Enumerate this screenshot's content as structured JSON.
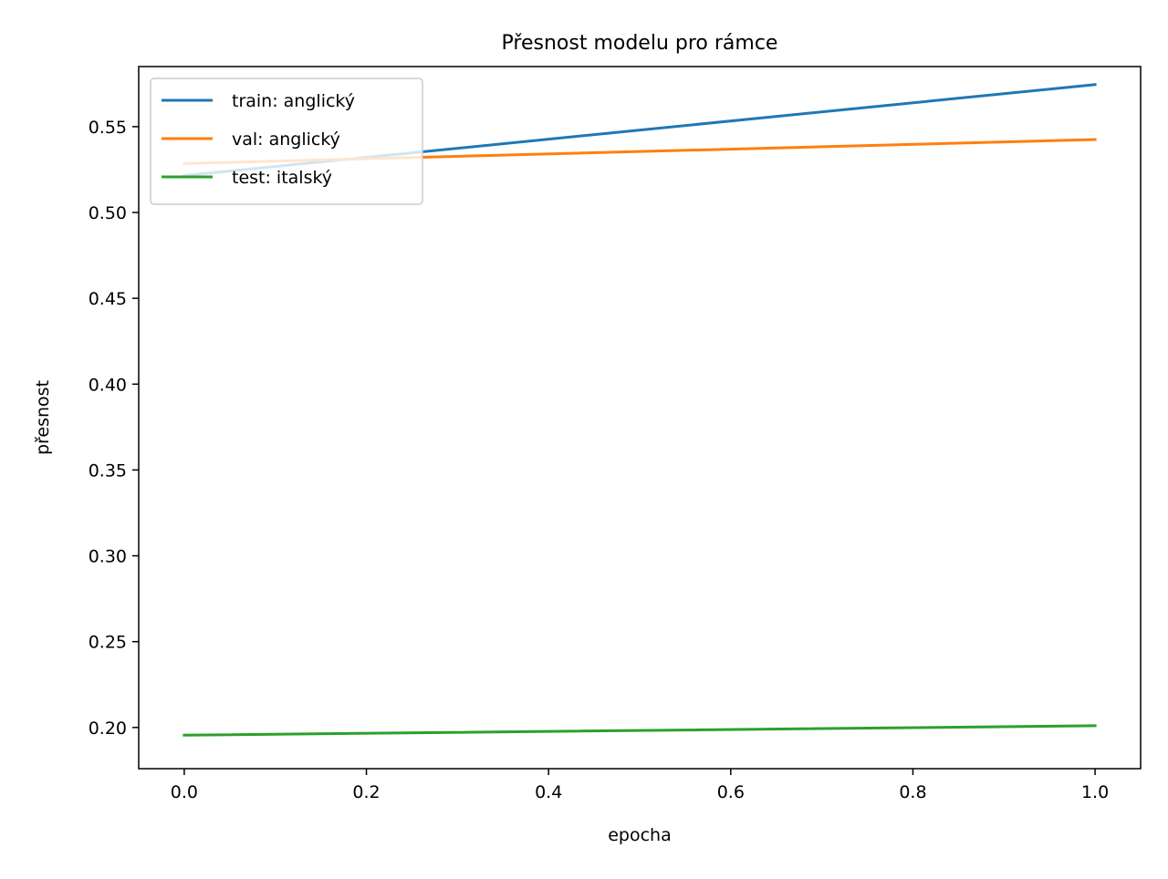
{
  "chart_data": {
    "type": "line",
    "title": "Přesnost modelu pro rámce",
    "xlabel": "epocha",
    "ylabel": "přesnost",
    "x": [
      0,
      1
    ],
    "xlim": [
      -0.05,
      1.05
    ],
    "ylim": [
      0.176,
      0.585
    ],
    "xticks": [
      0.0,
      0.2,
      0.4,
      0.6,
      0.8,
      1.0
    ],
    "xtick_labels": [
      "0.0",
      "0.2",
      "0.4",
      "0.6",
      "0.8",
      "1.0"
    ],
    "yticks": [
      0.2,
      0.25,
      0.3,
      0.35,
      0.4,
      0.45,
      0.5,
      0.55
    ],
    "ytick_labels": [
      "0.20",
      "0.25",
      "0.30",
      "0.35",
      "0.40",
      "0.45",
      "0.50",
      "0.55"
    ],
    "grid": false,
    "legend_position": "upper left",
    "series": [
      {
        "name": "train: anglický",
        "color": "#1f77b4",
        "values": [
          0.5215,
          0.5745
        ]
      },
      {
        "name": "val: anglický",
        "color": "#ff7f0e",
        "values": [
          0.5285,
          0.5425
        ]
      },
      {
        "name": "test: italský",
        "color": "#2ca02c",
        "values": [
          0.1955,
          0.201
        ]
      }
    ]
  }
}
